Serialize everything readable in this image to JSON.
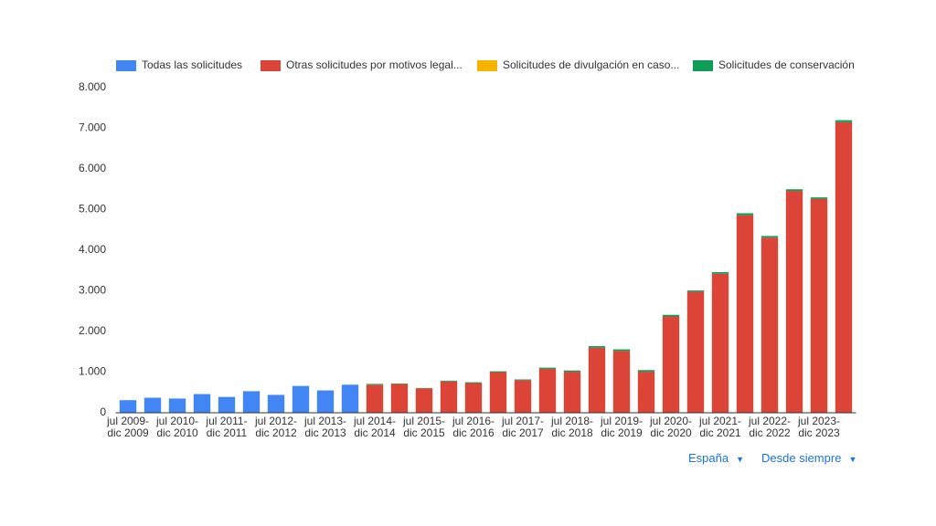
{
  "chart_data": {
    "type": "stacked-bar",
    "categories": [
      "jul 2009-\ndic 2009",
      null,
      "jul 2010-\ndic 2010",
      null,
      "jul 2011-\ndic 2011",
      null,
      "jul 2012-\ndic 2012",
      null,
      "jul 2013-\ndic 2013",
      null,
      "jul 2014-\ndic 2014",
      null,
      "jul 2015-\ndic 2015",
      null,
      "jul 2016-\ndic 2016",
      null,
      "jul 2017-\ndic 2017",
      null,
      "jul 2018-\ndic 2018",
      null,
      "jul 2019-\ndic 2019",
      null,
      "jul 2020-\ndic 2020",
      null,
      "jul 2021-\ndic 2021",
      null,
      "jul 2022-\ndic 2022",
      null,
      "jul 2023-\ndic 2023",
      null
    ],
    "series": [
      {
        "name": "Todas las solicitudes",
        "color": "#4285f4",
        "values": [
          310,
          370,
          350,
          460,
          390,
          530,
          440,
          660,
          550,
          690,
          null,
          null,
          null,
          null,
          null,
          null,
          null,
          null,
          null,
          null,
          null,
          null,
          null,
          null,
          null,
          null,
          null,
          null,
          null,
          null
        ]
      },
      {
        "name": "Otras solicitudes por motivos legal...",
        "color": "#db4437",
        "values": [
          null,
          null,
          null,
          null,
          null,
          null,
          null,
          null,
          null,
          null,
          690,
          710,
          600,
          770,
          730,
          1000,
          800,
          1080,
          1010,
          1600,
          1520,
          1010,
          2370,
          2980,
          3420,
          4860,
          4310,
          5460,
          5260,
          7150
        ]
      },
      {
        "name": "Solicitudes de divulgación en caso...",
        "color": "#f4b400",
        "values": [
          null,
          null,
          null,
          null,
          null,
          null,
          null,
          null,
          null,
          null,
          0,
          0,
          0,
          0,
          0,
          0,
          0,
          0,
          0,
          0,
          0,
          0,
          0,
          0,
          0,
          0,
          0,
          0,
          0,
          0
        ]
      },
      {
        "name": "Solicitudes de conservación",
        "color": "#0f9d58",
        "values": [
          null,
          null,
          null,
          null,
          null,
          null,
          null,
          null,
          null,
          null,
          20,
          10,
          10,
          20,
          20,
          20,
          20,
          30,
          30,
          40,
          40,
          40,
          40,
          30,
          40,
          50,
          40,
          40,
          40,
          50
        ]
      }
    ],
    "ylim": [
      0,
      8000
    ],
    "yticks": [
      0,
      {
        "value": 1000,
        "label": "1.000"
      },
      {
        "value": 2000,
        "label": "2.000"
      },
      {
        "value": 3000,
        "label": "3.000"
      },
      {
        "value": 4000,
        "label": "4.000"
      },
      {
        "value": 5000,
        "label": "5.000"
      },
      {
        "value": 6000,
        "label": "6.000"
      },
      {
        "value": 7000,
        "label": "7.000"
      },
      {
        "value": 8000,
        "label": "8.000"
      }
    ],
    "grid": false,
    "legend": "top"
  },
  "controls": [
    "España",
    "Desde siempre"
  ]
}
